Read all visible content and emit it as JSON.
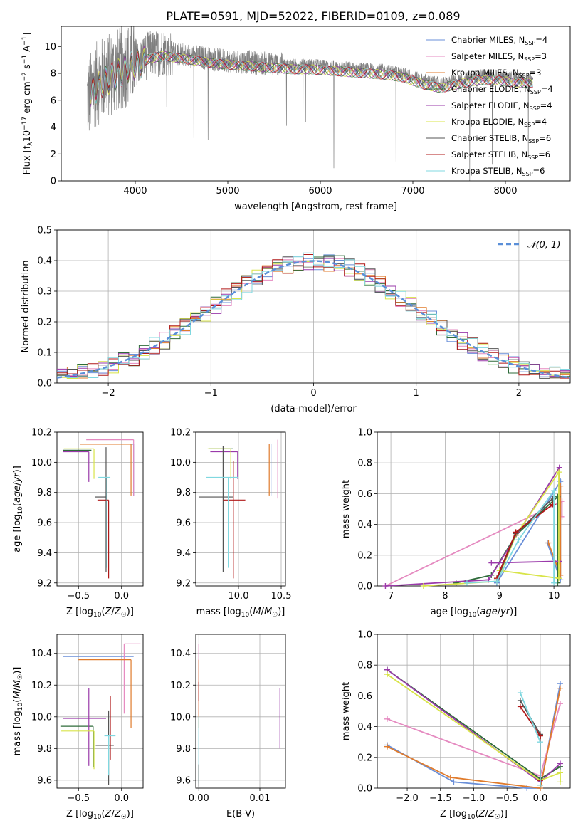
{
  "title": "PLATE=0591, MJD=52022, FIBERID=0109, z=0.089",
  "colors": {
    "chabrier_miles": "#6a8fd8",
    "salpeter_miles": "#e58ac0",
    "kroupa_miles": "#e07b2c",
    "chabrier_elodie": "#2e6b3a",
    "salpeter_elodie": "#9a3aaa",
    "kroupa_elodie": "#d8e448",
    "chabrier_stelib": "#555555",
    "salpeter_stelib": "#b01818",
    "kroupa_stelib": "#80d8e0",
    "normal_curve": "#5a8fd8",
    "grid": "#b0b0b0"
  },
  "chart_data": [
    {
      "id": "spectrum",
      "type": "line",
      "xlabel": "wavelength [Angstrom, rest frame]",
      "ylabel": "Flux [f",
      "xlim": [
        3200,
        8700
      ],
      "ylim": [
        0,
        11.5
      ],
      "xticks": [
        4000,
        5000,
        6000,
        7000,
        8000
      ],
      "yticks": [
        0,
        2,
        4,
        6,
        8,
        10
      ],
      "grid": false,
      "legend_position": "right",
      "legend": [
        {
          "label": "Chabrier MILES, N",
          "sub": "SSP",
          "value": "=4",
          "color": "#6a8fd8"
        },
        {
          "label": "Salpeter MILES, N",
          "sub": "SSP",
          "value": "=3",
          "color": "#e58ac0"
        },
        {
          "label": "Kroupa MILES, N",
          "sub": "SSP",
          "value": "=3",
          "color": "#e07b2c"
        },
        {
          "label": "Chabrier ELODIE, N",
          "sub": "SSP",
          "value": "=4",
          "color": "#2e6b3a"
        },
        {
          "label": "Salpeter ELODIE, N",
          "sub": "SSP",
          "value": "=4",
          "color": "#9a3aaa"
        },
        {
          "label": "Kroupa ELODIE, N",
          "sub": "SSP",
          "value": "=4",
          "color": "#d8e448"
        },
        {
          "label": "Chabrier STELIB, N",
          "sub": "SSP",
          "value": "=6",
          "color": "#555555"
        },
        {
          "label": "Salpeter STELIB, N",
          "sub": "SSP",
          "value": "=6",
          "color": "#b01818"
        },
        {
          "label": "Kroupa STELIB, N",
          "sub": "SSP",
          "value": "=6",
          "color": "#80d8e0"
        }
      ],
      "continuum": {
        "x": [
          3500,
          3550,
          3650,
          3750,
          3850,
          3950,
          4050,
          4150,
          4300,
          4500,
          4700,
          4900,
          5100,
          5300,
          5500,
          5700,
          5900,
          6100,
          6300,
          6500,
          6700,
          6900,
          7100,
          7300,
          7500,
          7700,
          7900,
          8100,
          8300
        ],
        "y": [
          6.2,
          7.0,
          7.6,
          8.0,
          8.4,
          8.8,
          9.0,
          9.4,
          9.6,
          9.4,
          9.2,
          9.0,
          8.9,
          8.8,
          8.7,
          8.6,
          8.6,
          8.5,
          8.4,
          8.3,
          8.2,
          8.0,
          7.5,
          7.2,
          7.5,
          7.8,
          7.8,
          7.6,
          7.6
        ]
      }
    },
    {
      "id": "residuals",
      "type": "histogram",
      "xlabel": "(data-model)/error",
      "ylabel": "Normed distribution",
      "xlim": [
        -2.5,
        2.5
      ],
      "ylim": [
        0,
        0.5
      ],
      "xticks": [
        -2,
        -1,
        0,
        1,
        2
      ],
      "yticks": [
        0.0,
        0.1,
        0.2,
        0.3,
        0.4,
        0.5
      ],
      "grid": true,
      "legend": [
        {
          "label": "𝒩(0, 1)",
          "style": "dashed",
          "color": "#5a8fd8"
        }
      ],
      "bin_width": 0.1,
      "x_start": -2.5
    },
    {
      "id": "age_vs_z",
      "type": "errorbar",
      "xlabel": "Z [log",
      "ylabel": "age  [log",
      "xlim": [
        -0.75,
        0.25
      ],
      "ylim": [
        9.18,
        10.2
      ],
      "xticks": [
        -0.5,
        0.0
      ],
      "yticks": [
        9.2,
        9.4,
        9.6,
        9.8,
        10.0,
        10.2
      ],
      "grid": true,
      "points": [
        {
          "x": 0.14,
          "y": 10.12,
          "xl": 0.62,
          "xr": 0.0,
          "yl": 0.34,
          "yh": 0.0,
          "color": "#6a8fd8"
        },
        {
          "x": 0.14,
          "y": 10.15,
          "xl": 0.55,
          "xr": 0.0,
          "yl": 0.37,
          "yh": 0.0,
          "color": "#e58ac0"
        },
        {
          "x": 0.11,
          "y": 10.12,
          "xl": 0.59,
          "xr": 0.0,
          "yl": 0.34,
          "yh": 0.0,
          "color": "#e07b2c"
        },
        {
          "x": -0.35,
          "y": 10.08,
          "xl": 0.33,
          "xr": 0.0,
          "yl": 0.0,
          "yh": 0.0,
          "color": "#2e6b3a"
        },
        {
          "x": -0.38,
          "y": 10.07,
          "xl": 0.3,
          "xr": 0.0,
          "yl": 0.2,
          "yh": 0.0,
          "color": "#9a3aaa"
        },
        {
          "x": -0.32,
          "y": 10.09,
          "xl": 0.35,
          "xr": 0.0,
          "yl": 0.2,
          "yh": 0.0,
          "color": "#d8e448"
        },
        {
          "x": -0.18,
          "y": 9.77,
          "xl": 0.13,
          "xr": 0.0,
          "yl": 0.5,
          "yh": 0.33,
          "color": "#555555"
        },
        {
          "x": -0.15,
          "y": 9.75,
          "xl": 0.13,
          "xr": 0.0,
          "yl": 0.52,
          "yh": 0.0,
          "color": "#b01818"
        },
        {
          "x": -0.17,
          "y": 9.9,
          "xl": 0.1,
          "xr": 0.04,
          "yl": 0.6,
          "yh": 0.0,
          "color": "#80d8e0"
        }
      ]
    },
    {
      "id": "age_vs_mass",
      "type": "errorbar",
      "xlabel": "mass [log",
      "ylabel": "",
      "xlim": [
        9.5,
        10.55
      ],
      "ylim": [
        9.18,
        10.2
      ],
      "xticks": [
        10.0,
        10.5
      ],
      "yticks": [
        9.2,
        9.4,
        9.6,
        9.8,
        10.0,
        10.2
      ],
      "grid": true,
      "points": [
        {
          "x": 10.38,
          "y": 10.12,
          "xl": 0.0,
          "xr": 0.0,
          "yl": 0.34,
          "yh": 0.0,
          "color": "#6a8fd8"
        },
        {
          "x": 10.46,
          "y": 10.15,
          "xl": 0.0,
          "xr": 0.0,
          "yl": 0.39,
          "yh": 0.0,
          "color": "#e58ac0"
        },
        {
          "x": 10.36,
          "y": 10.12,
          "xl": 0.0,
          "xr": 0.0,
          "yl": 0.34,
          "yh": 0.0,
          "color": "#e07b2c"
        },
        {
          "x": 9.94,
          "y": 10.09,
          "xl": 0.29,
          "xr": 0.0,
          "yl": 0.0,
          "yh": 0.0,
          "color": "#2e6b3a"
        },
        {
          "x": 9.99,
          "y": 10.07,
          "xl": 0.32,
          "xr": 0.0,
          "yl": 0.18,
          "yh": 0.0,
          "color": "#9a3aaa"
        },
        {
          "x": 9.91,
          "y": 10.09,
          "xl": 0.27,
          "xr": 0.0,
          "yl": 0.2,
          "yh": 0.0,
          "color": "#d8e448"
        },
        {
          "x": 9.82,
          "y": 9.77,
          "xl": 0.28,
          "xr": 0.12,
          "yl": 0.5,
          "yh": 0.34,
          "color": "#555555"
        },
        {
          "x": 9.94,
          "y": 9.75,
          "xl": 0.12,
          "xr": 0.14,
          "yl": 0.52,
          "yh": 0.26,
          "color": "#b01818"
        },
        {
          "x": 9.88,
          "y": 9.9,
          "xl": 0.26,
          "xr": 0.12,
          "yl": 0.6,
          "yh": 0.0,
          "color": "#80d8e0"
        }
      ]
    },
    {
      "id": "weight_vs_age",
      "type": "line",
      "xlabel": "age  [log",
      "ylabel": "mass weight",
      "xlim": [
        6.75,
        10.3
      ],
      "ylim": [
        0,
        1.0
      ],
      "xticks": [
        7,
        8,
        9,
        10
      ],
      "yticks": [
        0.0,
        0.2,
        0.4,
        0.6,
        0.8,
        1.0
      ],
      "grid": true,
      "series": [
        {
          "color": "#6a8fd8",
          "x": [
            9.88,
            10.12,
            10.12,
            8.95
          ],
          "y": [
            0.28,
            0.04,
            0.68,
            0.02
          ]
        },
        {
          "color": "#e58ac0",
          "x": [
            6.9,
            10.15,
            10.15
          ],
          "y": [
            0.0,
            0.55,
            0.45
          ]
        },
        {
          "color": "#e07b2c",
          "x": [
            9.9,
            10.12,
            10.12
          ],
          "y": [
            0.28,
            0.07,
            0.65
          ]
        },
        {
          "color": "#2e6b3a",
          "x": [
            8.2,
            8.85,
            9.3,
            10.07,
            10.07
          ],
          "y": [
            0.02,
            0.07,
            0.33,
            0.58,
            0.02
          ]
        },
        {
          "color": "#9a3aaa",
          "x": [
            6.9,
            8.8,
            10.1,
            10.1,
            8.85
          ],
          "y": [
            0.0,
            0.04,
            0.77,
            0.16,
            0.15
          ]
        },
        {
          "color": "#d8e448",
          "x": [
            7.6,
            8.95,
            9.3,
            10.09,
            10.09,
            9.0
          ],
          "y": [
            0.0,
            0.03,
            0.33,
            0.74,
            0.05,
            0.1
          ]
        },
        {
          "color": "#555555",
          "x": [
            8.95,
            9.3,
            9.98
          ],
          "y": [
            0.04,
            0.34,
            0.57
          ]
        },
        {
          "color": "#b01818",
          "x": [
            8.95,
            9.3,
            9.98
          ],
          "y": [
            0.05,
            0.35,
            0.53
          ]
        },
        {
          "color": "#80d8e0",
          "x": [
            8.4,
            8.95,
            9.35,
            10.0,
            10.0
          ],
          "y": [
            0.02,
            0.03,
            0.3,
            0.62,
            0.02
          ]
        }
      ]
    },
    {
      "id": "mass_vs_z",
      "type": "errorbar",
      "xlabel": "Z [log",
      "ylabel": "mass [log",
      "xlim": [
        -0.75,
        0.25
      ],
      "ylim": [
        9.55,
        10.52
      ],
      "xticks": [
        -0.5,
        0.0
      ],
      "yticks": [
        9.6,
        9.8,
        10.0,
        10.2,
        10.4
      ],
      "grid": true,
      "points": [
        {
          "x": 0.14,
          "y": 10.38,
          "xl": 0.82,
          "xr": 0.0,
          "yl": 0.0,
          "yh": 0.0,
          "color": "#6a8fd8"
        },
        {
          "x": 0.03,
          "y": 10.46,
          "xl": 0.0,
          "xr": 0.19,
          "yl": 0.44,
          "yh": 0.0,
          "color": "#e58ac0"
        },
        {
          "x": 0.11,
          "y": 10.36,
          "xl": 0.61,
          "xr": 0.0,
          "yl": 0.43,
          "yh": 0.0,
          "color": "#e07b2c"
        },
        {
          "x": -0.33,
          "y": 9.94,
          "xl": 0.38,
          "xr": 0.0,
          "yl": 0.26,
          "yh": 0.0,
          "color": "#2e6b3a"
        },
        {
          "x": -0.38,
          "y": 9.99,
          "xl": 0.3,
          "xr": 0.2,
          "yl": 0.3,
          "yh": 0.19,
          "color": "#9a3aaa"
        },
        {
          "x": -0.32,
          "y": 9.91,
          "xl": 0.38,
          "xr": 0.0,
          "yl": 0.24,
          "yh": 0.0,
          "color": "#d8e448"
        },
        {
          "x": -0.15,
          "y": 9.82,
          "xl": 0.15,
          "xr": 0.06,
          "yl": 0.25,
          "yh": 0.22,
          "color": "#555555"
        },
        {
          "x": -0.13,
          "y": 9.94,
          "xl": 0.0,
          "xr": 0.0,
          "yl": 0.21,
          "yh": 0.19,
          "color": "#b01818"
        },
        {
          "x": -0.15,
          "y": 9.88,
          "xl": 0.05,
          "xr": 0.08,
          "yl": 0.25,
          "yh": 0.0,
          "color": "#80d8e0"
        }
      ]
    },
    {
      "id": "mass_vs_ebv",
      "type": "errorbar",
      "xlabel": "E(B-V)",
      "ylabel": "",
      "xlim": [
        -0.0005,
        0.0142
      ],
      "ylim": [
        9.55,
        10.52
      ],
      "xticks": [
        0.0,
        0.01
      ],
      "xticklabels": [
        "0.00",
        "0.01"
      ],
      "yticks": [
        9.6,
        9.8,
        10.0,
        10.2,
        10.4
      ],
      "grid": true,
      "points": [
        {
          "x": 0.0,
          "y": 10.46,
          "yl": 0.45,
          "yh": 0.0,
          "color": "#e58ac0"
        },
        {
          "x": 0.0,
          "y": 10.36,
          "yl": 0.43,
          "yh": 0.0,
          "color": "#e07b2c"
        },
        {
          "x": 0.0,
          "y": 10.22,
          "yl": 0.12,
          "yh": 0.0,
          "color": "#b01818"
        },
        {
          "x": 0.0,
          "y": 10.0,
          "yl": 0.42,
          "yh": 0.0,
          "color": "#80d8e0"
        },
        {
          "x": 0.0,
          "y": 9.7,
          "yl": 0.14,
          "yh": 0.0,
          "color": "#555555"
        },
        {
          "x": 0.0133,
          "y": 10.18,
          "yl": 0.38,
          "yh": 0.0,
          "color": "#9a3aaa"
        }
      ]
    },
    {
      "id": "weight_vs_z",
      "type": "line",
      "xlabel": "Z [log",
      "ylabel": "mass weight",
      "xlim": [
        -2.45,
        0.45
      ],
      "ylim": [
        0,
        1.0
      ],
      "xticks": [
        -2.0,
        -1.5,
        -1.0,
        -0.5,
        0.0
      ],
      "yticks": [
        0.0,
        0.2,
        0.4,
        0.6,
        0.8,
        1.0
      ],
      "grid": true,
      "series": [
        {
          "color": "#6a8fd8",
          "x": [
            -2.3,
            -1.3,
            -0.2,
            0.0,
            0.3
          ],
          "y": [
            0.28,
            0.04,
            0.0,
            0.0,
            0.68
          ]
        },
        {
          "color": "#e58ac0",
          "x": [
            -2.3,
            0.0,
            0.3
          ],
          "y": [
            0.45,
            0.08,
            0.55
          ]
        },
        {
          "color": "#e07b2c",
          "x": [
            -2.3,
            -1.35,
            0.0,
            0.3
          ],
          "y": [
            0.27,
            0.07,
            0.0,
            0.65
          ]
        },
        {
          "color": "#2e6b3a",
          "x": [
            -2.3,
            0.0,
            0.3
          ],
          "y": [
            0.77,
            0.06,
            0.14
          ]
        },
        {
          "color": "#9a3aaa",
          "x": [
            -2.3,
            0.0,
            0.3
          ],
          "y": [
            0.77,
            0.04,
            0.16
          ]
        },
        {
          "color": "#d8e448",
          "x": [
            -2.3,
            0.0,
            0.3,
            0.3
          ],
          "y": [
            0.74,
            0.05,
            0.1,
            0.04
          ]
        },
        {
          "color": "#555555",
          "x": [
            -0.3,
            0.0,
            0.0
          ],
          "y": [
            0.57,
            0.35,
            0.02
          ]
        },
        {
          "color": "#b01818",
          "x": [
            -0.3,
            0.0,
            0.0
          ],
          "y": [
            0.53,
            0.34,
            0.05
          ]
        },
        {
          "color": "#80d8e0",
          "x": [
            -0.3,
            0.0,
            0.0
          ],
          "y": [
            0.62,
            0.3,
            0.02
          ]
        }
      ]
    }
  ]
}
